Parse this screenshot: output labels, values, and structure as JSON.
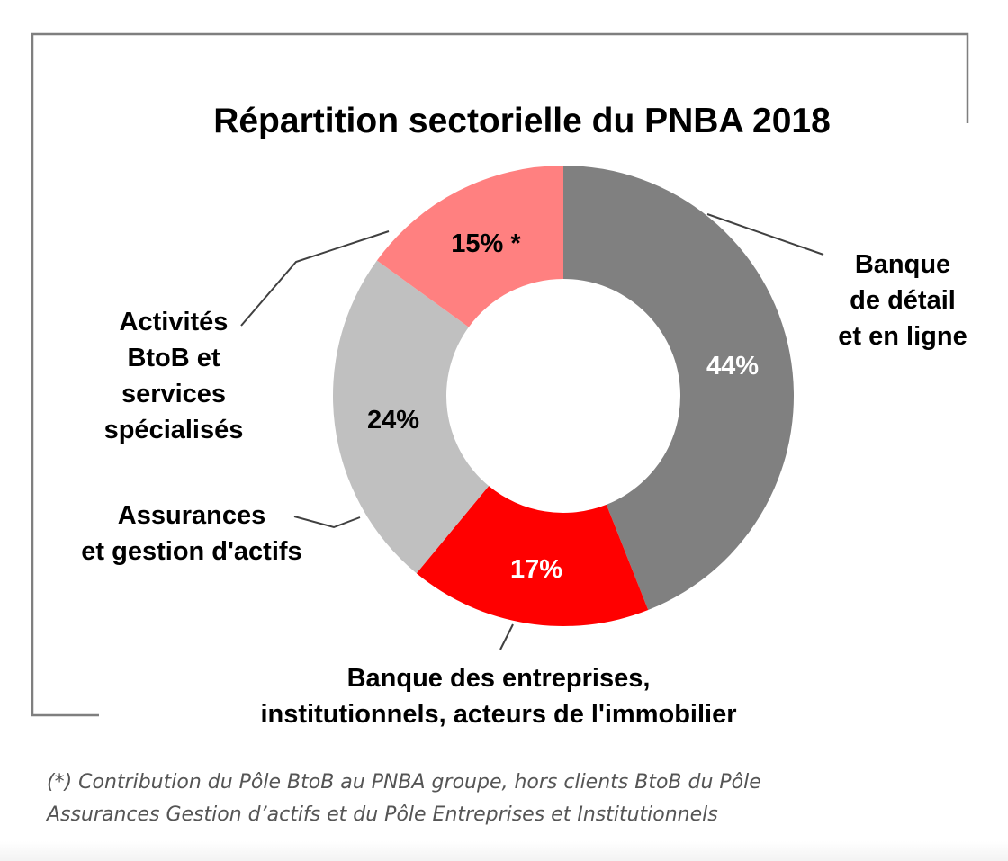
{
  "chart_data": {
    "type": "pie",
    "donut": true,
    "title": "Répartition sectorielle du PNBA 2018",
    "slices": [
      {
        "label_lines": [
          "Banque",
          "de détail",
          "et en ligne"
        ],
        "value": 44,
        "value_label": "44%",
        "color": "#808080",
        "value_color": "#ffffff"
      },
      {
        "label_lines": [
          "Banque des entreprises,",
          "institutionnels, acteurs de l'immobilier"
        ],
        "value": 17,
        "value_label": "17%",
        "color": "#ff0000",
        "value_color": "#ffffff"
      },
      {
        "label_lines": [
          "Assurances",
          "et gestion d'actifs"
        ],
        "value": 24,
        "value_label": "24%",
        "color": "#c0c0c0",
        "value_color": "#000000"
      },
      {
        "label_lines": [
          "Activités",
          "BtoB et",
          "services",
          "spécialisés"
        ],
        "value": 15,
        "value_label": "15% *",
        "color": "#ff8080",
        "value_color": "#000000"
      }
    ]
  },
  "footnote": {
    "line1": "(*) Contribution du Pôle BtoB au PNBA groupe, hors clients BtoB du Pôle",
    "line2": "Assurances Gestion d’actifs et du Pôle Entreprises et Institutionnels"
  },
  "colors": {
    "frame": "#7f7f7f",
    "leader": "#404040"
  }
}
